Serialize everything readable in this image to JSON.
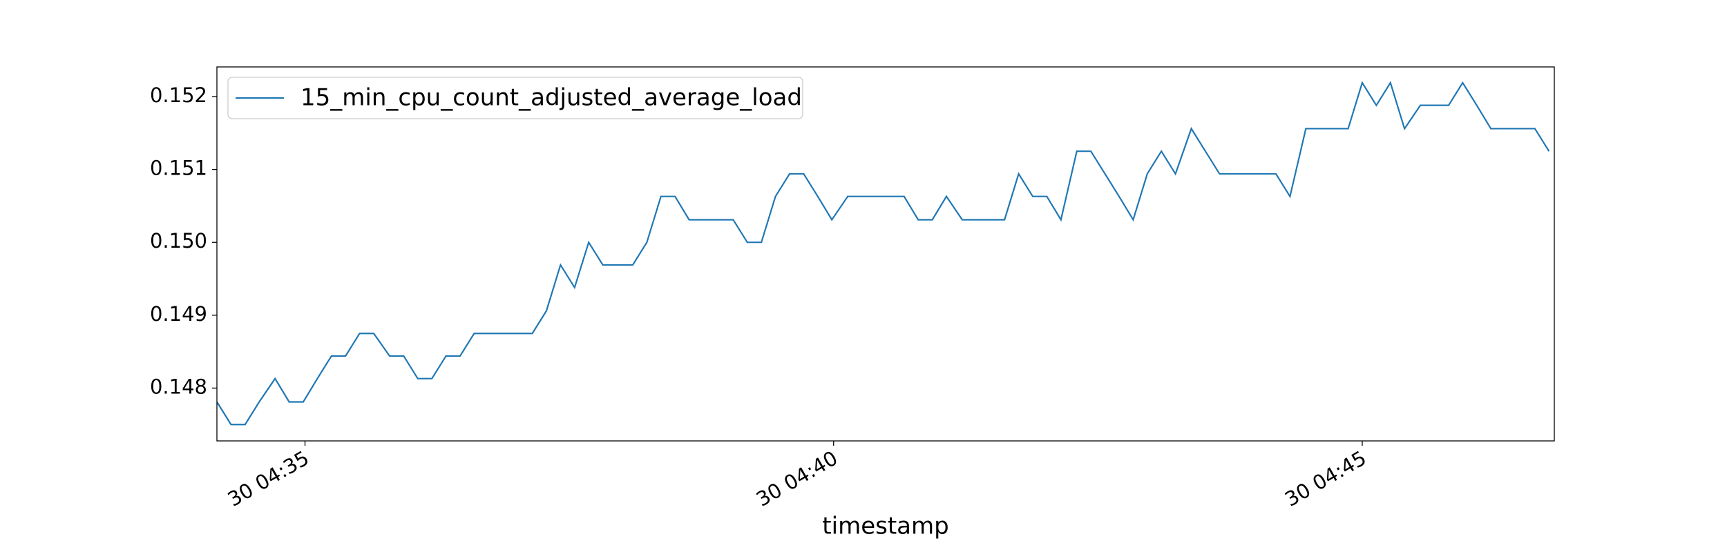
{
  "chart_data": {
    "type": "line",
    "xlabel": "timestamp",
    "legend": "upper left",
    "grid": false,
    "x": [
      "30 04:34:10",
      "30 04:34:18",
      "30 04:34:26",
      "30 04:34:34",
      "30 04:34:43",
      "30 04:34:51",
      "30 04:34:59",
      "30 04:35:07",
      "30 04:35:15",
      "30 04:35:23",
      "30 04:35:31",
      "30 04:35:39",
      "30 04:35:48",
      "30 04:35:56",
      "30 04:36:04",
      "30 04:36:12",
      "30 04:36:20",
      "30 04:36:28",
      "30 04:36:36",
      "30 04:36:44",
      "30 04:36:53",
      "30 04:37:01",
      "30 04:37:09",
      "30 04:37:17",
      "30 04:37:25",
      "30 04:37:33",
      "30 04:37:41",
      "30 04:37:49",
      "30 04:37:58",
      "30 04:38:06",
      "30 04:38:14",
      "30 04:38:22",
      "30 04:38:30",
      "30 04:38:38",
      "30 04:38:46",
      "30 04:38:54",
      "30 04:39:03",
      "30 04:39:11",
      "30 04:39:19",
      "30 04:39:27",
      "30 04:39:35",
      "30 04:39:43",
      "30 04:39:51",
      "30 04:39:59",
      "30 04:40:08",
      "30 04:40:16",
      "30 04:40:24",
      "30 04:40:32",
      "30 04:40:40",
      "30 04:40:48",
      "30 04:40:56",
      "30 04:41:04",
      "30 04:41:13",
      "30 04:41:21",
      "30 04:41:29",
      "30 04:41:37",
      "30 04:41:45",
      "30 04:41:53",
      "30 04:42:01",
      "30 04:42:09",
      "30 04:42:18",
      "30 04:42:26",
      "30 04:42:34",
      "30 04:42:42",
      "30 04:42:50",
      "30 04:42:58",
      "30 04:43:06",
      "30 04:43:14",
      "30 04:43:23",
      "30 04:43:31",
      "30 04:43:39",
      "30 04:43:47",
      "30 04:43:55",
      "30 04:44:03",
      "30 04:44:11",
      "30 04:44:19",
      "30 04:44:28",
      "30 04:44:36",
      "30 04:44:44",
      "30 04:44:52",
      "30 04:45:00",
      "30 04:45:08",
      "30 04:45:16",
      "30 04:45:24",
      "30 04:45:33",
      "30 04:45:41",
      "30 04:45:49",
      "30 04:45:57",
      "30 04:46:05",
      "30 04:46:13",
      "30 04:46:21",
      "30 04:46:29",
      "30 04:46:38",
      "30 04:46:46"
    ],
    "series": [
      {
        "name": "15_min_cpu_count_adjusted_average_load",
        "color": "#1f77b4",
        "values": [
          0.14781,
          0.1475,
          0.1475,
          0.14781,
          0.14813,
          0.14781,
          0.14781,
          0.14813,
          0.14844,
          0.14844,
          0.14875,
          0.14875,
          0.14844,
          0.14844,
          0.14813,
          0.14813,
          0.14844,
          0.14844,
          0.14875,
          0.14875,
          0.14875,
          0.14875,
          0.14875,
          0.14906,
          0.14969,
          0.14938,
          0.15,
          0.14969,
          0.14969,
          0.14969,
          0.15,
          0.15063,
          0.15063,
          0.15031,
          0.15031,
          0.15031,
          0.15031,
          0.15,
          0.15,
          0.15063,
          0.15094,
          0.15094,
          0.15063,
          0.15031,
          0.15063,
          0.15063,
          0.15063,
          0.15063,
          0.15063,
          0.15031,
          0.15031,
          0.15063,
          0.15031,
          0.15031,
          0.15031,
          0.15031,
          0.15094,
          0.15063,
          0.15063,
          0.15031,
          0.15125,
          0.15125,
          0.15094,
          0.15063,
          0.15031,
          0.15094,
          0.15125,
          0.15094,
          0.15156,
          0.15125,
          0.15094,
          0.15094,
          0.15094,
          0.15094,
          0.15094,
          0.15063,
          0.15156,
          0.15156,
          0.15156,
          0.15156,
          0.15219,
          0.15188,
          0.15219,
          0.15156,
          0.15188,
          0.15188,
          0.15188,
          0.15219,
          0.15188,
          0.15156,
          0.15156,
          0.15156,
          0.15156,
          0.15125
        ]
      }
    ],
    "xlim": [
      "30 04:34:10",
      "30 04:46:49"
    ],
    "xticks": [
      "30 04:35",
      "30 04:40",
      "30 04:45"
    ],
    "ylim": [
      0.147275,
      0.152407
    ],
    "yticks": [
      0.148,
      0.149,
      {
        "value": 0.15,
        "label": "0.150"
      },
      0.151,
      0.152
    ]
  }
}
